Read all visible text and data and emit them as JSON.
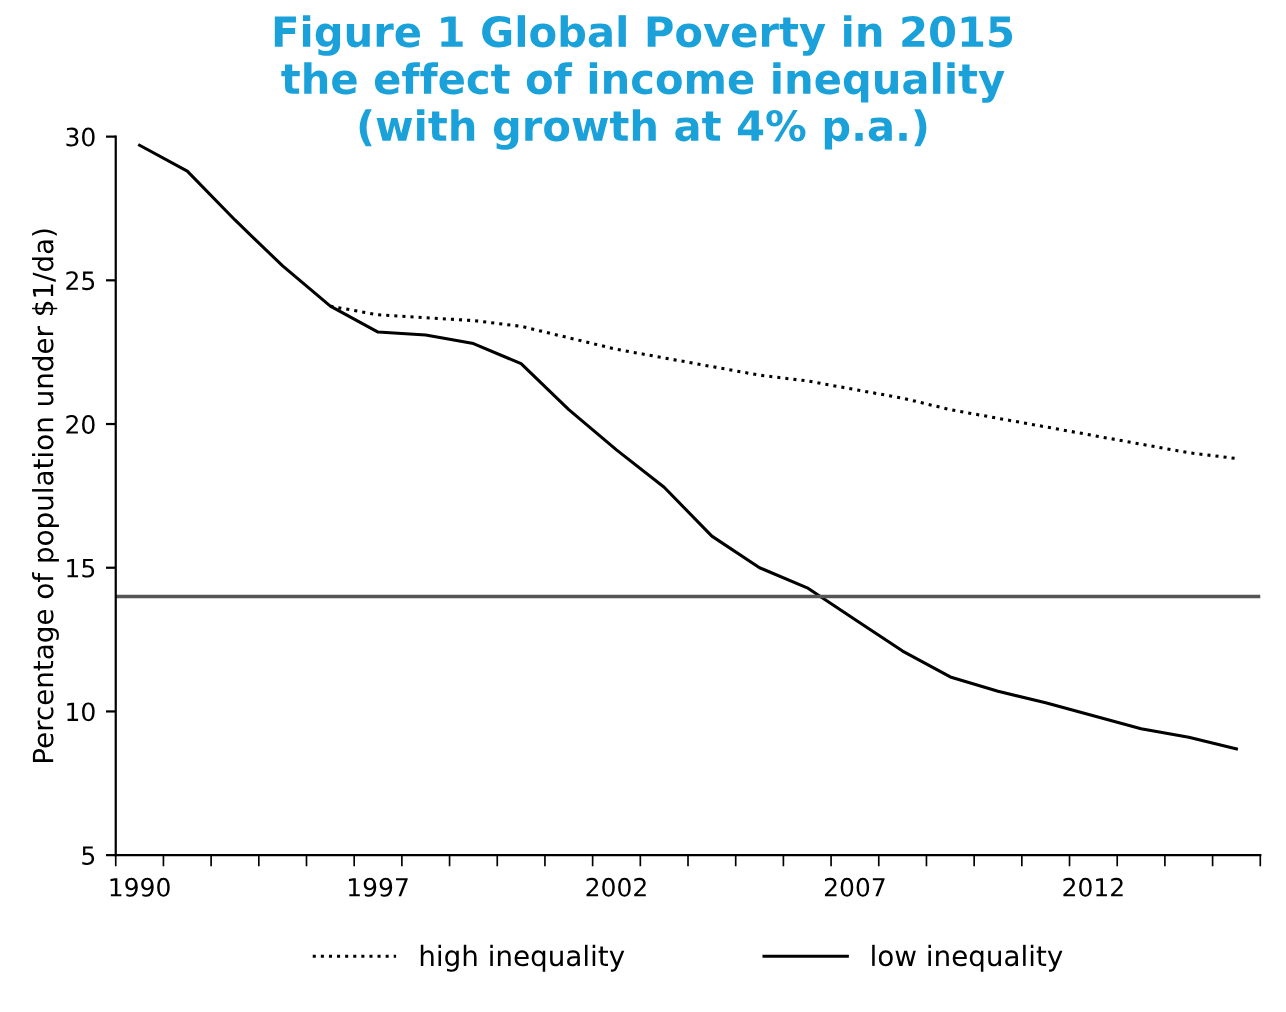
{
  "chart_data": {
    "type": "line",
    "title": "Figure 1 Global Poverty in 2015\nthe effect of income inequality\n(with growth at 4% p.a.)",
    "ylabel": "Percentage of population under $1/da)",
    "categories": [
      "1990",
      null,
      null,
      null,
      null,
      "1997",
      null,
      null,
      null,
      null,
      "2002",
      null,
      null,
      null,
      null,
      "2007",
      null,
      null,
      null,
      null,
      "2012",
      null,
      null,
      null
    ],
    "series": [
      {
        "name": "high inequality",
        "color": "#000000",
        "line_style": "dotted",
        "values": [
          null,
          null,
          null,
          null,
          24.1,
          23.8,
          23.7,
          23.6,
          23.4,
          23.0,
          22.6,
          22.3,
          22.0,
          21.7,
          21.5,
          21.2,
          20.9,
          20.5,
          20.2,
          19.9,
          19.6,
          19.3,
          19.0,
          18.8
        ]
      },
      {
        "name": "low inequality",
        "color": "#000000",
        "line_style": "solid",
        "values": [
          29.7,
          28.8,
          27.1,
          25.5,
          24.1,
          23.2,
          23.1,
          22.8,
          22.1,
          20.5,
          19.1,
          17.8,
          16.1,
          15.0,
          14.3,
          13.2,
          12.1,
          11.2,
          10.7,
          10.3,
          9.85,
          9.4,
          9.1,
          8.7
        ]
      }
    ],
    "ylim": [
      5,
      30
    ],
    "yticks": [
      5,
      10,
      15,
      20,
      25,
      30
    ],
    "ref_lines": [
      {
        "axis": "y",
        "value": 14,
        "color": "#555555"
      }
    ],
    "grid": false,
    "legend": "bottom"
  }
}
